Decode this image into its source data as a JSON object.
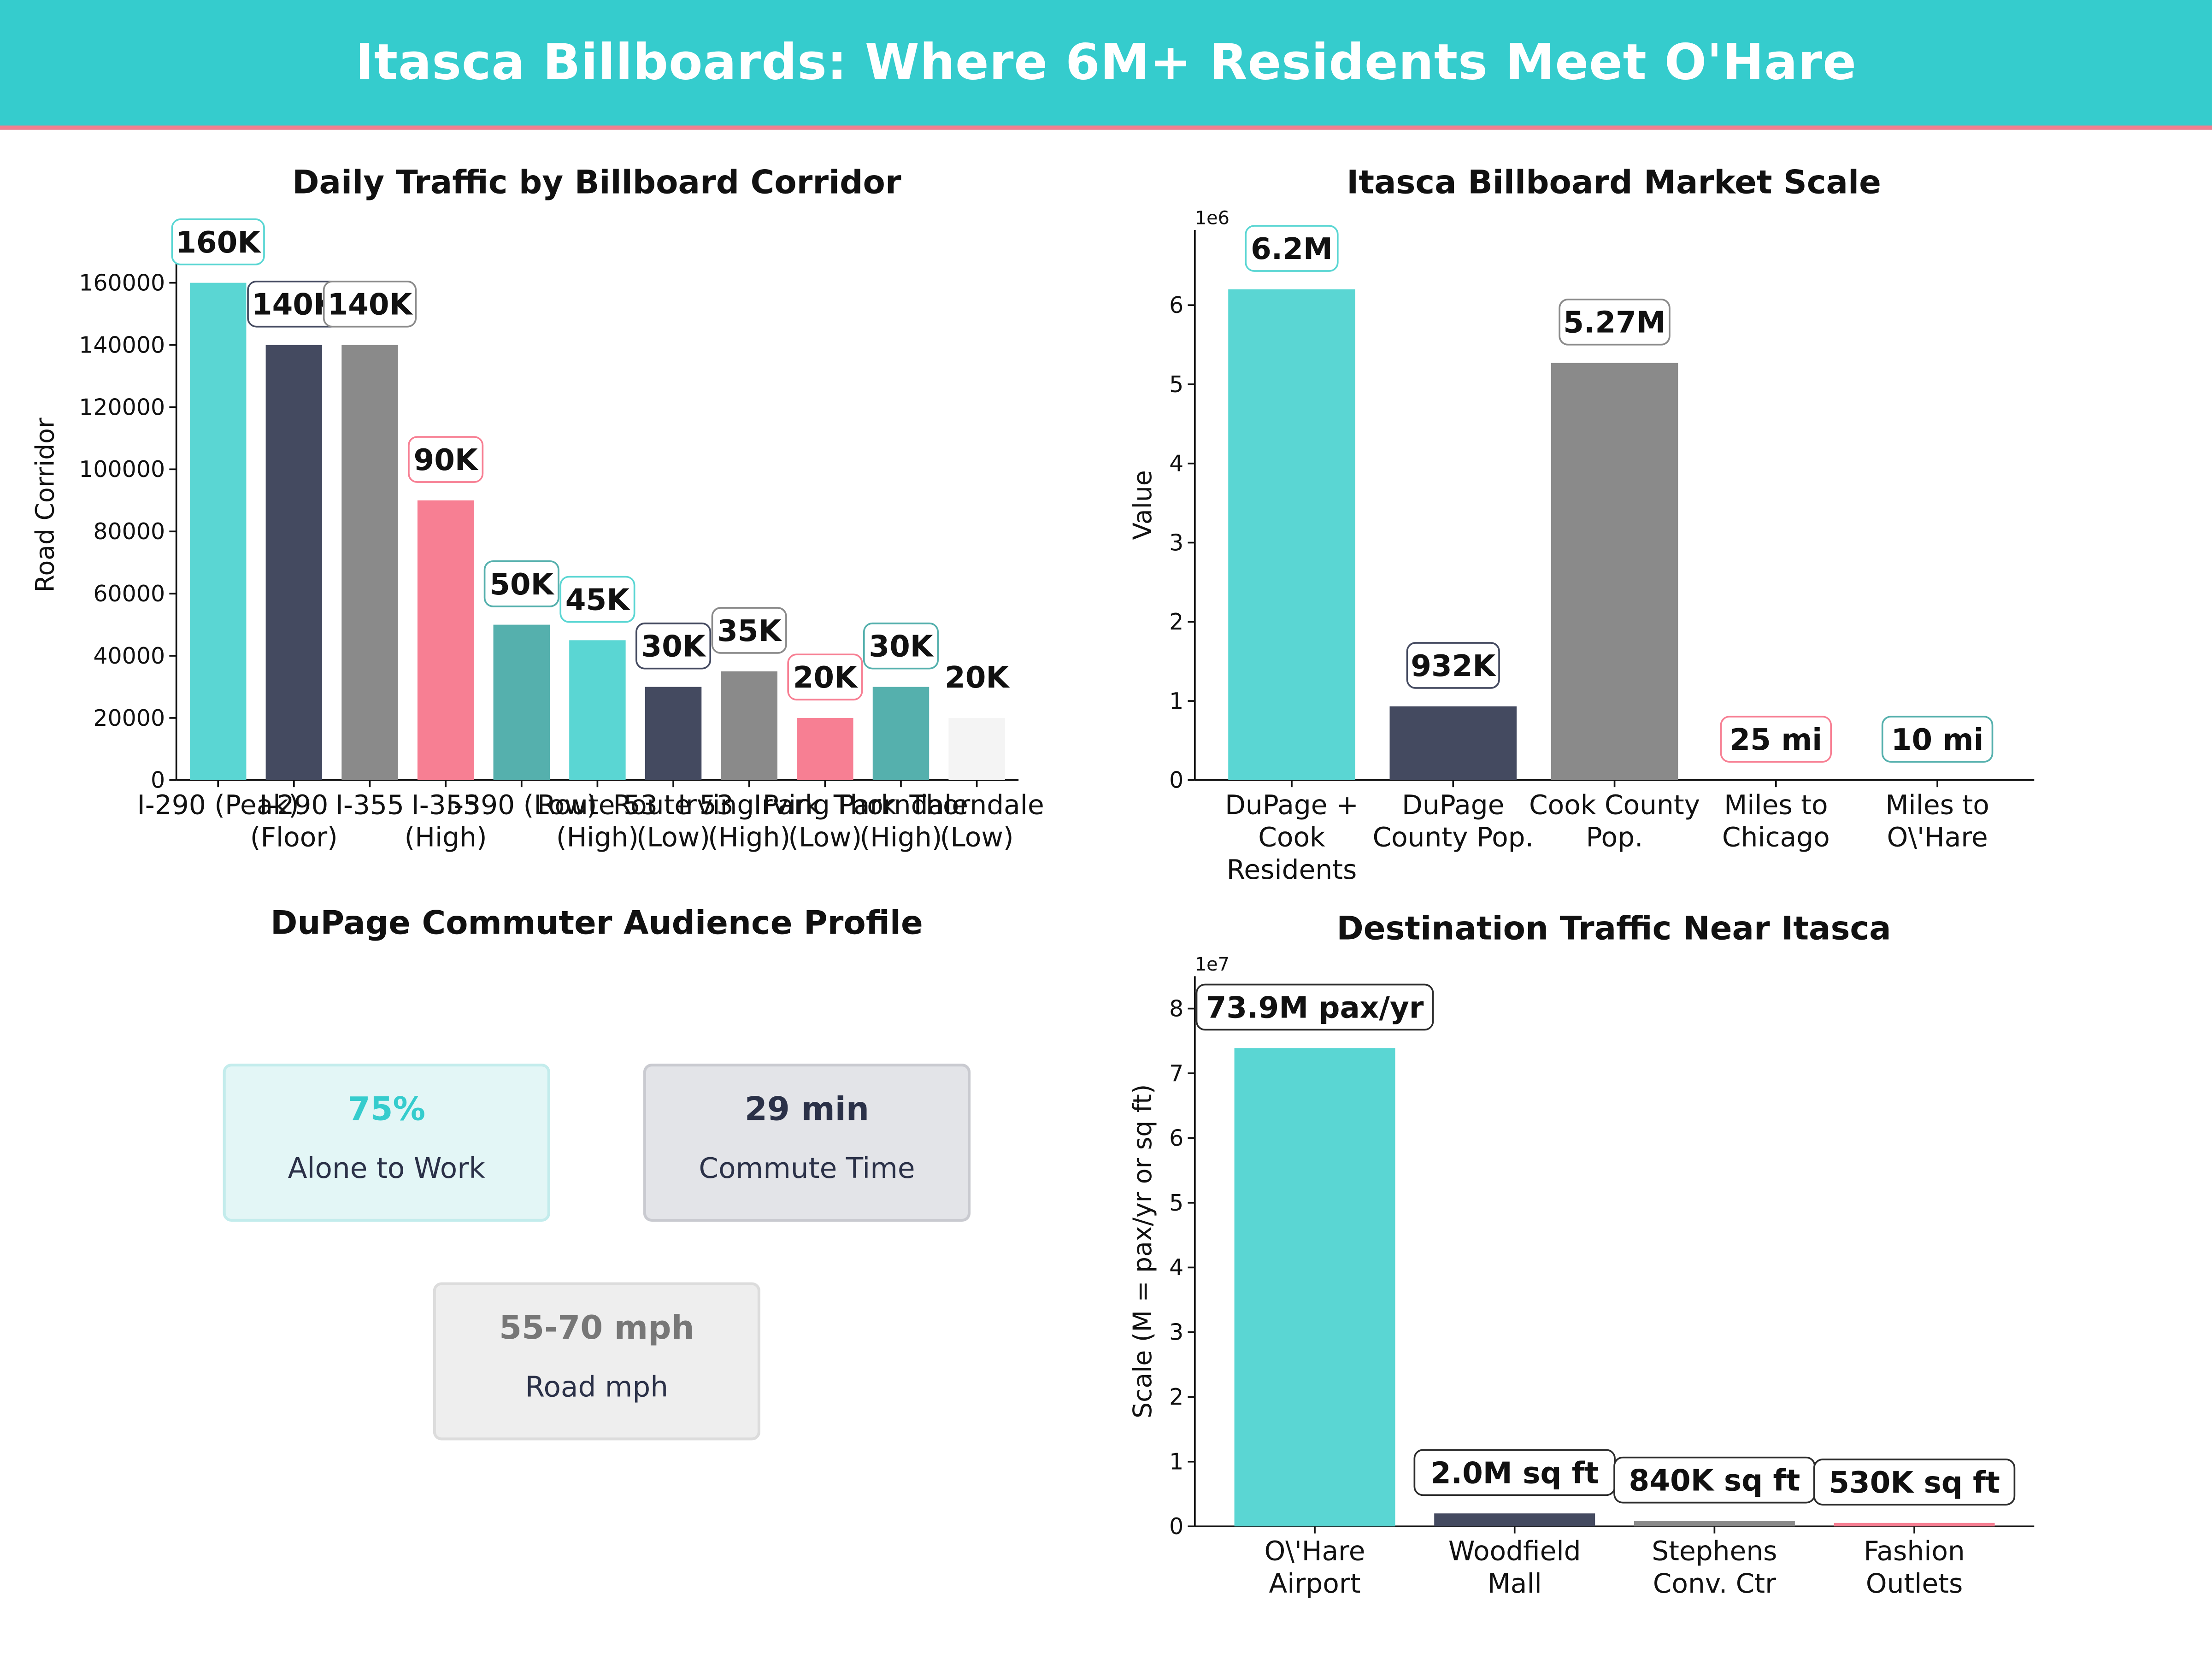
{
  "header": {
    "title": "Itasca Billboards: Where 6M+ Residents Meet O'Hare"
  },
  "colors": {
    "teal": "#5ad6d3",
    "navy": "#444a60",
    "gray": "#8a8a8a",
    "pink": "#f77f93",
    "dark_teal": "#55b0ad",
    "light": "#f4f4f4"
  },
  "chart_data": [
    {
      "id": "traffic",
      "type": "bar",
      "title": "Daily Traffic by Billboard Corridor",
      "xlabel": "",
      "ylabel": "Road Corridor",
      "ylim": [
        0,
        177000
      ],
      "yticks": [
        0,
        20000,
        40000,
        60000,
        80000,
        100000,
        120000,
        140000,
        160000
      ],
      "categories": [
        [
          "I-290 (Peak)"
        ],
        [
          "I-290",
          "(Floor)"
        ],
        [
          "I-355"
        ],
        [
          "I-355",
          "(High)"
        ],
        [
          "I-390 (Low)"
        ],
        [
          "Route 53",
          "(High)"
        ],
        [
          "Route 53",
          "(Low)"
        ],
        [
          "Irving Park",
          "(High)"
        ],
        [
          "Irving Park",
          "(Low)"
        ],
        [
          "Thorndale",
          "(High)"
        ],
        [
          "Thorndale",
          "(Low)"
        ]
      ],
      "values": [
        160000,
        140000,
        140000,
        90000,
        50000,
        45000,
        30000,
        35000,
        20000,
        30000,
        20000
      ],
      "value_labels": [
        "160K",
        "140K",
        "140K",
        "90K",
        "50K",
        "45K",
        "30K",
        "35K",
        "20K",
        "30K",
        "20K"
      ],
      "bar_colors": [
        "#5ad6d3",
        "#444a60",
        "#8a8a8a",
        "#f77f93",
        "#55b0ad",
        "#5ad6d3",
        "#444a60",
        "#8a8a8a",
        "#f77f93",
        "#55b0ad",
        "#f4f4f4"
      ],
      "grid": false,
      "legend": "none"
    },
    {
      "id": "market",
      "type": "bar",
      "title": "Itasca Billboard Market Scale",
      "xlabel": "",
      "ylabel": "Value",
      "offset_label": "1e6",
      "ylim": [
        0,
        6.95
      ],
      "yticks": [
        0,
        1,
        2,
        3,
        4,
        5,
        6
      ],
      "categories": [
        [
          "DuPage +",
          "Cook",
          "Residents"
        ],
        [
          "DuPage",
          "County Pop."
        ],
        [
          "Cook County",
          "Pop."
        ],
        [
          "Miles to",
          "Chicago"
        ],
        [
          "Miles to",
          "O\\'Hare"
        ]
      ],
      "values": [
        6.2,
        0.932,
        5.27,
        2.5e-05,
        1e-05
      ],
      "value_labels": [
        "6.2M",
        "932K",
        "5.27M",
        "25 mi",
        "10 mi"
      ],
      "bar_colors": [
        "#5ad6d3",
        "#444a60",
        "#8a8a8a",
        "#f77f93",
        "#55b0ad"
      ],
      "grid": false,
      "legend": "none"
    },
    {
      "id": "destination",
      "type": "bar",
      "title": "Destination Traffic Near Itasca",
      "xlabel": "",
      "ylabel": "Scale (M = pax/yr or sq ft)",
      "offset_label": "1e7",
      "ylim": [
        0,
        8.5
      ],
      "yticks": [
        0,
        1,
        2,
        3,
        4,
        5,
        6,
        7,
        8
      ],
      "categories": [
        [
          "O\\'Hare",
          "Airport"
        ],
        [
          "Woodfield",
          "Mall"
        ],
        [
          "Stephens",
          "Conv. Ctr"
        ],
        [
          "Fashion",
          "Outlets"
        ]
      ],
      "values": [
        7.39,
        0.2,
        0.084,
        0.053
      ],
      "value_labels": [
        "73.9M pax/yr",
        "2.0M sq ft",
        "840K sq ft",
        "530K sq ft"
      ],
      "bar_colors": [
        "#5ad6d3",
        "#444a60",
        "#8a8a8a",
        "#f77f93"
      ],
      "grid": false,
      "legend": "none"
    }
  ],
  "audience": {
    "title": "DuPage Commuter Audience Profile",
    "cards": [
      {
        "value": "75%",
        "label": "Alone to Work",
        "bg": "#e3f6f6",
        "border": "#c3ecec",
        "value_color": "#35cccd"
      },
      {
        "value": "29 min",
        "label": "Commute Time",
        "bg": "#e3e4e8",
        "border": "#c9cad0",
        "value_color": "#2b3148"
      },
      {
        "value": "55-70 mph",
        "label": "Road mph",
        "bg": "#eeeeee",
        "border": "#dcdcdc",
        "value_color": "#777777"
      }
    ]
  }
}
